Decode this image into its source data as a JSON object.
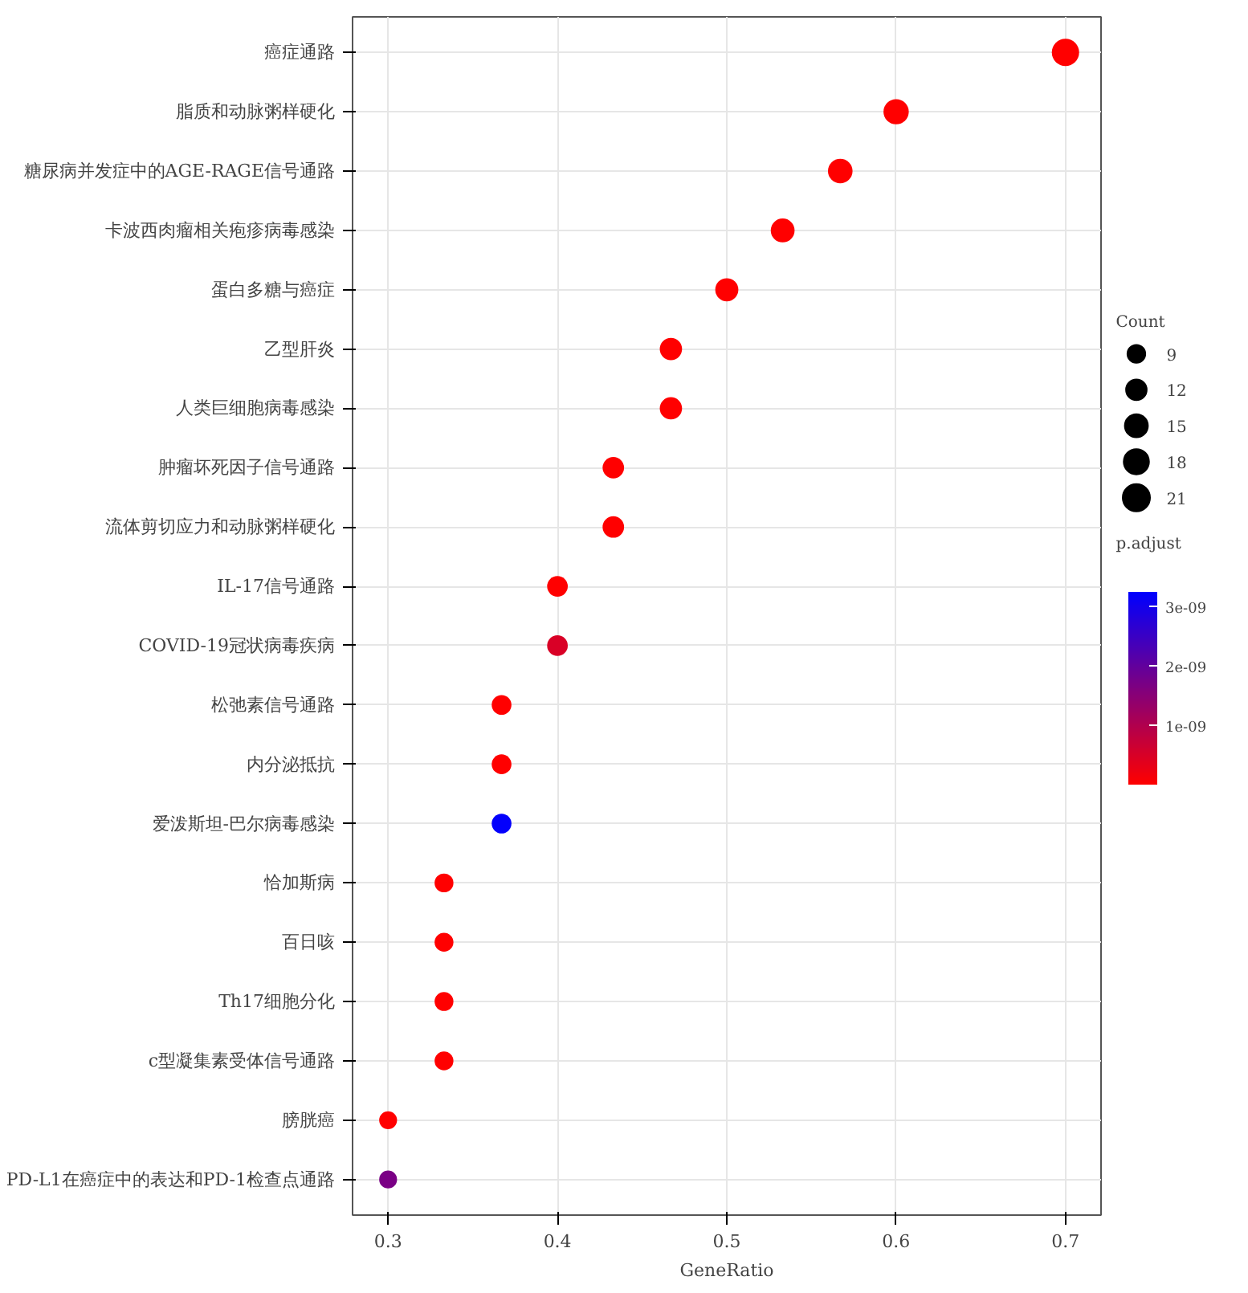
{
  "chart_data": {
    "type": "bubble",
    "orientation": "horizontal",
    "xlabel": "GeneRatio",
    "legend_title": "Count",
    "clabel": "p.adjust",
    "categories": [
      "癌症通路",
      "脂质和动脉粥样硬化",
      "糖尿病并发症中的AGE-RAGE信号通路",
      "卡波西肉瘤相关疱疹病毒感染",
      "蛋白多糖与癌症",
      "乙型肝炎",
      "人类巨细胞病毒感染",
      "肿瘤坏死因子信号通路",
      "流体剪切应力和动脉粥样硬化",
      "IL-17信号通路",
      "COVID-19冠状病毒疾病",
      "松弛素信号通路",
      "内分泌抵抗",
      "爱泼斯坦-巴尔病毒感染",
      "恰加斯病",
      "百日咳",
      "Th17细胞分化",
      "c型凝集素受体信号通路",
      "膀胱癌",
      "PD-L1在癌症中的表达和PD-1检查点通路"
    ],
    "values": [
      0.7,
      0.6,
      0.567,
      0.533,
      0.5,
      0.467,
      0.467,
      0.433,
      0.433,
      0.4,
      0.4,
      0.367,
      0.367,
      0.367,
      0.333,
      0.333,
      0.333,
      0.333,
      0.3,
      0.3
    ],
    "sizes": [
      21,
      18,
      17,
      16,
      15,
      14,
      14,
      13,
      13,
      12,
      12,
      11,
      11,
      11,
      10,
      10,
      10,
      10,
      9,
      9
    ],
    "size_legend": [
      9,
      12,
      15,
      18,
      21
    ],
    "cvalues": [
      1e-11,
      1e-11,
      1e-11,
      1e-11,
      1e-11,
      1e-11,
      1e-11,
      1e-11,
      1e-11,
      1e-11,
      5e-10,
      1e-11,
      1e-11,
      3.2e-09,
      1e-11,
      1e-11,
      1e-11,
      1e-11,
      1e-11,
      1.7e-09
    ],
    "clim": [
      1e-11,
      3.25e-09
    ],
    "cticks": [
      {
        "value": 1e-09,
        "label": "1e-09"
      },
      {
        "value": 2e-09,
        "label": "2e-09"
      },
      {
        "value": 3e-09,
        "label": "3e-09"
      }
    ],
    "xlim": [
      0.279,
      0.721
    ],
    "xticks": [
      {
        "value": 0.3,
        "label": "0.3"
      },
      {
        "value": 0.4,
        "label": "0.4"
      },
      {
        "value": 0.5,
        "label": "0.5"
      },
      {
        "value": 0.6,
        "label": "0.6"
      },
      {
        "value": 0.7,
        "label": "0.7"
      }
    ],
    "grid": true
  }
}
